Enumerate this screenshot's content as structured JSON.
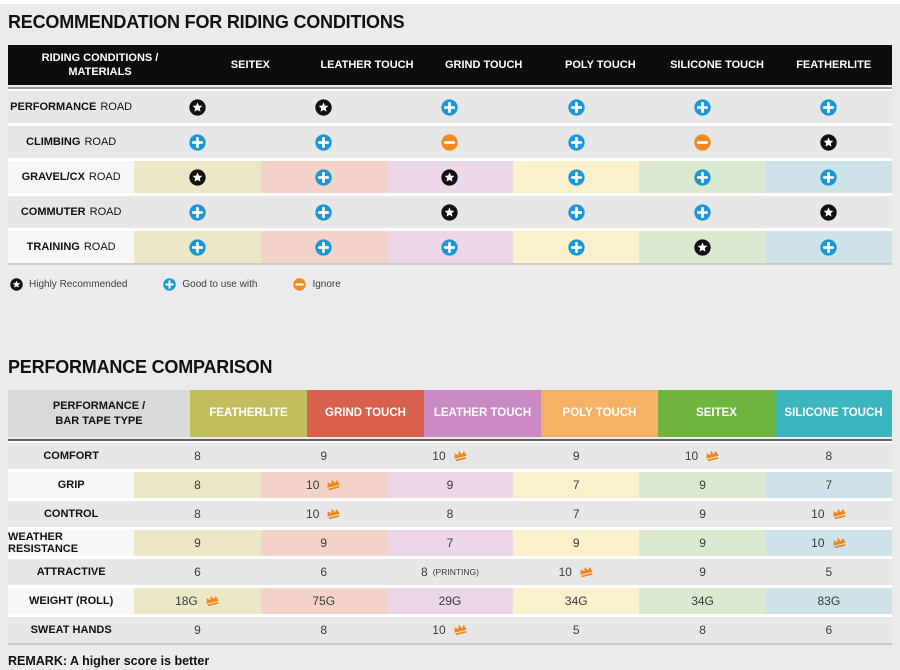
{
  "recommendation_table": {
    "title": "RECOMMENDATION FOR RIDING CONDITIONS",
    "header_label_line1": "RIDING CONDITIONS /",
    "header_label_line2": "MATERIALS",
    "columns": [
      "SEITEX",
      "LEATHER TOUCH",
      "GRIND TOUCH",
      "POLY TOUCH",
      "SILICONE TOUCH",
      "FEATHERLITE"
    ],
    "rows": [
      {
        "label_bold": "PERFORMANCE",
        "label_rest": "ROAD",
        "tinted": false,
        "icons": [
          "star",
          "star",
          "plus",
          "plus",
          "plus",
          "plus"
        ]
      },
      {
        "label_bold": "CLIMBING",
        "label_rest": "ROAD",
        "tinted": false,
        "icons": [
          "plus",
          "plus",
          "minus",
          "plus",
          "minus",
          "star"
        ]
      },
      {
        "label_bold": "GRAVEL/CX",
        "label_rest": "ROAD",
        "tinted": true,
        "icons": [
          "star",
          "plus",
          "star",
          "plus",
          "plus",
          "plus"
        ]
      },
      {
        "label_bold": "COMMUTER",
        "label_rest": "ROAD",
        "tinted": false,
        "icons": [
          "plus",
          "plus",
          "star",
          "plus",
          "plus",
          "star"
        ]
      },
      {
        "label_bold": "TRAINING",
        "label_rest": "ROAD",
        "tinted": true,
        "icons": [
          "plus",
          "plus",
          "plus",
          "plus",
          "star",
          "plus"
        ]
      }
    ],
    "legend": [
      {
        "icon": "star",
        "label": "Highly Recommended"
      },
      {
        "icon": "plus",
        "label": "Good to use with"
      },
      {
        "icon": "minus",
        "label": "Ignore"
      }
    ]
  },
  "performance_table": {
    "title": "PERFORMANCE COMPARISON",
    "header_label_line1": "PERFORMANCE /",
    "header_label_line2": "BAR TAPE TYPE",
    "columns": [
      {
        "label": "FEATHERLITE",
        "color": "#c2be5c",
        "tint": "#eae8c6"
      },
      {
        "label": "GRIND TOUCH",
        "color": "#d8604d",
        "tint": "#f3d2c7"
      },
      {
        "label": "LEATHER TOUCH",
        "color": "#c98ac3",
        "tint": "#ecd7e9"
      },
      {
        "label": "POLY TOUCH",
        "color": "#f6b165",
        "tint": "#fbf0cc"
      },
      {
        "label": "SEITEX",
        "color": "#6fb43d",
        "tint": "#dbe9d0"
      },
      {
        "label": "SILICONE TOUCH",
        "color": "#3bb5be",
        "tint": "#cde3e9"
      }
    ],
    "rows": [
      {
        "label": "COMFORT",
        "tinted": false,
        "values": [
          {
            "text": "8"
          },
          {
            "text": "9"
          },
          {
            "text": "10",
            "crown": true
          },
          {
            "text": "9"
          },
          {
            "text": "10",
            "crown": true
          },
          {
            "text": "8"
          }
        ]
      },
      {
        "label": "GRIP",
        "tinted": true,
        "values": [
          {
            "text": "8"
          },
          {
            "text": "10",
            "crown": true
          },
          {
            "text": "9"
          },
          {
            "text": "7"
          },
          {
            "text": "9"
          },
          {
            "text": "7"
          }
        ]
      },
      {
        "label": "CONTROL",
        "tinted": false,
        "values": [
          {
            "text": "8"
          },
          {
            "text": "10",
            "crown": true
          },
          {
            "text": "8"
          },
          {
            "text": "7"
          },
          {
            "text": "9"
          },
          {
            "text": "10",
            "crown": true
          }
        ]
      },
      {
        "label": "WEATHER RESISTANCE",
        "tinted": true,
        "values": [
          {
            "text": "9"
          },
          {
            "text": "9"
          },
          {
            "text": "7"
          },
          {
            "text": "9"
          },
          {
            "text": "9"
          },
          {
            "text": "10",
            "crown": true
          }
        ]
      },
      {
        "label": "ATTRACTIVE",
        "tinted": false,
        "values": [
          {
            "text": "6"
          },
          {
            "text": "6"
          },
          {
            "text": "8",
            "suffix": "(PRINTING)"
          },
          {
            "text": "10",
            "crown": true
          },
          {
            "text": "9"
          },
          {
            "text": "5"
          }
        ]
      },
      {
        "label": "WEIGHT (ROLL)",
        "tinted": true,
        "values": [
          {
            "text": "18G",
            "crown": true
          },
          {
            "text": "75G"
          },
          {
            "text": "29G"
          },
          {
            "text": "34G"
          },
          {
            "text": "34G"
          },
          {
            "text": "83G"
          }
        ]
      },
      {
        "label": "SWEAT HANDS",
        "tinted": false,
        "values": [
          {
            "text": "9"
          },
          {
            "text": "8"
          },
          {
            "text": "10",
            "crown": true
          },
          {
            "text": "5"
          },
          {
            "text": "8"
          },
          {
            "text": "6"
          }
        ]
      }
    ],
    "remark": "REMARK: A higher score is better"
  },
  "icons": {
    "star": "highly-recommended-star",
    "plus": "good-to-use-plus",
    "minus": "ignore-minus",
    "crown": "best-score-crown"
  },
  "colors": {
    "star_black": "#111111",
    "plus_blue": "#1b96d7",
    "minus_orange": "#f08a1f",
    "crown_orange": "#f0861b",
    "header_black": "#0d0d0d",
    "tints_by_position": [
      "#eae8c6",
      "#f3d2c7",
      "#ecd7e9",
      "#fbf0cc",
      "#dbe9d0",
      "#cde3e9"
    ]
  }
}
